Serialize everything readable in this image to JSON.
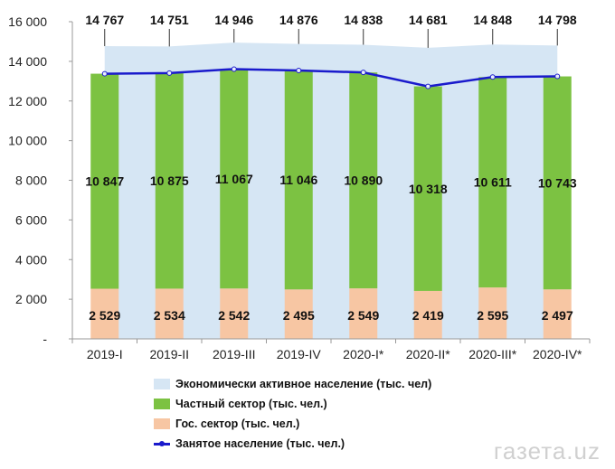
{
  "chart_data": {
    "type": "bar",
    "categories": [
      "2019-I",
      "2019-II",
      "2019-III",
      "2019-IV",
      "2020-I*",
      "2020-II*",
      "2020-III*",
      "2020-IV*"
    ],
    "series": [
      {
        "name": "Экономически активное население (тыс. чел)",
        "kind": "area",
        "values": [
          14767,
          14751,
          14946,
          14876,
          14838,
          14681,
          14848,
          14798
        ],
        "labels": [
          "14 767",
          "14 751",
          "14 946",
          "14 876",
          "14 838",
          "14 681",
          "14 848",
          "14 798"
        ],
        "color": "#d6e6f4"
      },
      {
        "name": "Частный сектор (тыс. чел.)",
        "kind": "stacked-bar",
        "values": [
          10847,
          10875,
          11067,
          11046,
          10890,
          10318,
          10611,
          10743
        ],
        "labels": [
          "10 847",
          "10 875",
          "11 067",
          "11 046",
          "10 890",
          "10 318",
          "10 611",
          "10 743"
        ],
        "color": "#7cc242"
      },
      {
        "name": "Гос. сектор (тыс. чел.)",
        "kind": "stacked-bar",
        "values": [
          2529,
          2534,
          2542,
          2495,
          2549,
          2419,
          2595,
          2497
        ],
        "labels": [
          "2 529",
          "2 534",
          "2 542",
          "2 495",
          "2 549",
          "2 419",
          "2 595",
          "2 497"
        ],
        "color": "#f7c6a3"
      },
      {
        "name": "Занятое население (тыс. чел.)",
        "kind": "line",
        "values": [
          13376,
          13409,
          13609,
          13541,
          13439,
          12737,
          13206,
          13240
        ],
        "color": "#1a1acc"
      }
    ],
    "ylim": [
      0,
      16000
    ],
    "y_ticks": [
      0,
      2000,
      4000,
      6000,
      8000,
      10000,
      12000,
      14000,
      16000
    ],
    "y_tick_labels": [
      "-",
      "2 000",
      "4 000",
      "6 000",
      "8 000",
      "10 000",
      "12 000",
      "14 000",
      "16 000"
    ],
    "grid": false,
    "legend_position": "bottom"
  },
  "watermark": "газета.uz"
}
